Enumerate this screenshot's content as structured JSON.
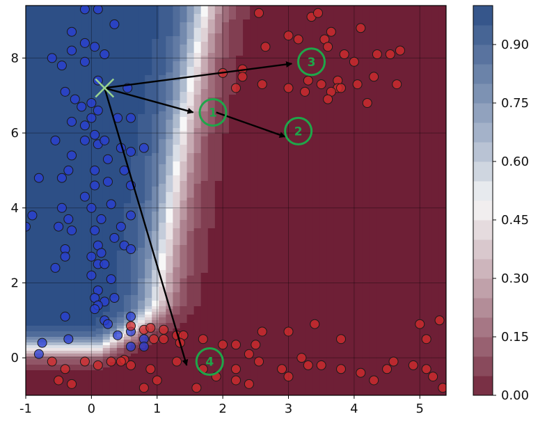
{
  "chart_data": {
    "type": "scatter",
    "title": "",
    "xlabel": "",
    "ylabel": "",
    "xlim": [
      -1.0,
      5.4
    ],
    "ylim": [
      -1.0,
      9.4
    ],
    "x_ticks": [
      "-1",
      "0",
      "1",
      "2",
      "3",
      "4",
      "5"
    ],
    "x_tick_values": [
      -1,
      0,
      1,
      2,
      3,
      4,
      5
    ],
    "y_ticks": [
      "0",
      "2",
      "4",
      "6",
      "8"
    ],
    "y_tick_values": [
      0,
      2,
      4,
      6,
      8
    ],
    "grid": true,
    "colorbar": {
      "range": [
        0.0,
        1.0
      ],
      "ticks": [
        "0.00",
        "0.15",
        "0.30",
        "0.45",
        "0.60",
        "0.75",
        "0.90"
      ],
      "tick_values": [
        0.0,
        0.15,
        0.3,
        0.45,
        0.6,
        0.75,
        0.9
      ],
      "low_color": "#6e1f36",
      "mid_color": "#f7f7f7",
      "high_color": "#2d4f86"
    },
    "background": "decision boundary probability map (blue = high class-1 probability on the left, red = low on the right)",
    "series": [
      {
        "color": "#2a3fd6",
        "points": [
          [
            -0.1,
            9.3
          ],
          [
            0.1,
            9.3
          ],
          [
            0.35,
            8.9
          ],
          [
            -0.3,
            8.7
          ],
          [
            -0.1,
            8.4
          ],
          [
            0.05,
            8.3
          ],
          [
            -0.3,
            8.2
          ],
          [
            0.2,
            8.1
          ],
          [
            -0.6,
            8.0
          ],
          [
            -0.1,
            7.9
          ],
          [
            -0.45,
            7.8
          ],
          [
            0.1,
            7.4
          ],
          [
            -0.4,
            7.1
          ],
          [
            0.55,
            7.2
          ],
          [
            -0.25,
            6.9
          ],
          [
            0.0,
            6.8
          ],
          [
            -0.15,
            6.7
          ],
          [
            0.1,
            6.6
          ],
          [
            0.0,
            6.4
          ],
          [
            -0.1,
            6.2
          ],
          [
            0.4,
            6.4
          ],
          [
            0.6,
            6.4
          ],
          [
            -0.3,
            6.3
          ],
          [
            0.05,
            5.95
          ],
          [
            0.8,
            5.6
          ],
          [
            -0.55,
            5.8
          ],
          [
            -0.1,
            5.8
          ],
          [
            0.1,
            5.7
          ],
          [
            0.2,
            5.8
          ],
          [
            0.45,
            5.6
          ],
          [
            0.6,
            5.5
          ],
          [
            -0.3,
            5.4
          ],
          [
            0.25,
            5.3
          ],
          [
            0.05,
            5.0
          ],
          [
            -0.35,
            5.0
          ],
          [
            0.5,
            5.0
          ],
          [
            -0.45,
            4.8
          ],
          [
            0.25,
            4.7
          ],
          [
            0.05,
            4.6
          ],
          [
            0.6,
            4.6
          ],
          [
            -0.8,
            4.8
          ],
          [
            -0.1,
            4.3
          ],
          [
            0.3,
            4.1
          ],
          [
            -0.45,
            4.0
          ],
          [
            0.0,
            4.0
          ],
          [
            0.6,
            3.8
          ],
          [
            -0.35,
            3.7
          ],
          [
            0.15,
            3.7
          ],
          [
            0.45,
            3.5
          ],
          [
            -0.5,
            3.5
          ],
          [
            -0.3,
            3.4
          ],
          [
            0.05,
            3.4
          ],
          [
            0.35,
            3.2
          ],
          [
            -0.9,
            3.8
          ],
          [
            -1.0,
            3.5
          ],
          [
            0.1,
            3.0
          ],
          [
            0.15,
            2.8
          ],
          [
            0.0,
            2.7
          ],
          [
            0.5,
            3.0
          ],
          [
            -0.4,
            2.9
          ],
          [
            0.6,
            2.9
          ],
          [
            -0.4,
            2.7
          ],
          [
            0.1,
            2.5
          ],
          [
            0.2,
            2.5
          ],
          [
            0.0,
            2.2
          ],
          [
            -0.55,
            2.4
          ],
          [
            0.3,
            2.1
          ],
          [
            0.1,
            1.8
          ],
          [
            0.05,
            1.6
          ],
          [
            0.2,
            1.5
          ],
          [
            0.35,
            1.6
          ],
          [
            0.1,
            1.4
          ],
          [
            0.2,
            1.0
          ],
          [
            0.05,
            1.3
          ],
          [
            -0.4,
            1.1
          ],
          [
            0.6,
            1.1
          ],
          [
            0.25,
            0.9
          ],
          [
            0.6,
            0.7
          ],
          [
            0.4,
            0.6
          ],
          [
            -0.75,
            0.4
          ],
          [
            -0.35,
            0.5
          ],
          [
            0.6,
            0.3
          ],
          [
            0.8,
            0.5
          ],
          [
            -0.8,
            0.1
          ],
          [
            0.8,
            0.3
          ]
        ]
      },
      {
        "color": "#d62e2e",
        "points": [
          [
            2.55,
            9.2
          ],
          [
            3.35,
            9.1
          ],
          [
            3.45,
            9.2
          ],
          [
            3.15,
            8.5
          ],
          [
            3.0,
            8.6
          ],
          [
            3.65,
            8.7
          ],
          [
            3.55,
            8.5
          ],
          [
            4.1,
            8.8
          ],
          [
            2.65,
            8.3
          ],
          [
            3.6,
            8.3
          ],
          [
            3.85,
            8.1
          ],
          [
            4.35,
            8.1
          ],
          [
            4.55,
            8.1
          ],
          [
            4.7,
            8.2
          ],
          [
            4.65,
            7.3
          ],
          [
            4.0,
            7.9
          ],
          [
            4.3,
            7.5
          ],
          [
            2.0,
            7.6
          ],
          [
            2.3,
            7.7
          ],
          [
            2.3,
            7.5
          ],
          [
            2.6,
            7.3
          ],
          [
            2.2,
            7.2
          ],
          [
            3.0,
            7.2
          ],
          [
            3.25,
            7.1
          ],
          [
            3.5,
            7.3
          ],
          [
            3.75,
            7.4
          ],
          [
            3.75,
            7.2
          ],
          [
            3.65,
            7.1
          ],
          [
            3.6,
            6.9
          ],
          [
            3.8,
            7.2
          ],
          [
            4.05,
            7.3
          ],
          [
            4.2,
            6.8
          ],
          [
            3.3,
            7.4
          ],
          [
            0.6,
            0.85
          ],
          [
            0.8,
            0.75
          ],
          [
            0.9,
            0.8
          ],
          [
            1.1,
            0.75
          ],
          [
            0.95,
            0.5
          ],
          [
            1.1,
            0.5
          ],
          [
            1.3,
            0.6
          ],
          [
            1.4,
            0.6
          ],
          [
            1.35,
            0.4
          ],
          [
            1.7,
            0.5
          ],
          [
            2.0,
            0.35
          ],
          [
            2.2,
            0.35
          ],
          [
            2.5,
            0.35
          ],
          [
            2.4,
            0.1
          ],
          [
            2.6,
            0.7
          ],
          [
            3.0,
            0.7
          ],
          [
            3.4,
            0.9
          ],
          [
            3.8,
            0.5
          ],
          [
            5.0,
            0.9
          ],
          [
            5.3,
            1.0
          ],
          [
            5.1,
            0.5
          ],
          [
            -0.6,
            -0.1
          ],
          [
            -0.4,
            -0.3
          ],
          [
            -0.3,
            -0.7
          ],
          [
            -0.5,
            -0.6
          ],
          [
            -0.1,
            -0.1
          ],
          [
            0.1,
            -0.2
          ],
          [
            0.3,
            -0.1
          ],
          [
            0.5,
            -0.05
          ],
          [
            0.45,
            -0.1
          ],
          [
            0.6,
            -0.2
          ],
          [
            0.9,
            -0.3
          ],
          [
            1.0,
            -0.6
          ],
          [
            1.3,
            -0.1
          ],
          [
            1.7,
            -0.3
          ],
          [
            1.9,
            -0.5
          ],
          [
            2.2,
            -0.6
          ],
          [
            2.4,
            -0.7
          ],
          [
            2.2,
            -0.3
          ],
          [
            2.55,
            -0.1
          ],
          [
            2.9,
            -0.3
          ],
          [
            3.0,
            -0.5
          ],
          [
            3.2,
            0.0
          ],
          [
            3.3,
            -0.2
          ],
          [
            3.5,
            -0.2
          ],
          [
            3.8,
            -0.3
          ],
          [
            4.1,
            -0.4
          ],
          [
            4.3,
            -0.6
          ],
          [
            4.5,
            -0.3
          ],
          [
            4.6,
            -0.1
          ],
          [
            4.9,
            -0.2
          ],
          [
            5.1,
            -0.3
          ],
          [
            5.2,
            -0.5
          ],
          [
            5.35,
            -0.8
          ],
          [
            0.8,
            -0.8
          ],
          [
            1.6,
            -0.8
          ]
        ]
      }
    ],
    "marker": {
      "name": "x",
      "x": 0.2,
      "y": 7.2,
      "color": "#9bd48f"
    },
    "arrows": [
      {
        "from": [
          0.2,
          7.2
        ],
        "to": [
          1.55,
          6.55
        ]
      },
      {
        "from": [
          1.9,
          6.55
        ],
        "to": [
          2.95,
          5.9
        ]
      },
      {
        "from": [
          0.2,
          7.2
        ],
        "to": [
          3.05,
          7.85
        ]
      },
      {
        "from": [
          0.2,
          7.2
        ],
        "to": [
          1.45,
          -0.2
        ]
      }
    ],
    "annotations": [
      {
        "label": "1",
        "x": 1.85,
        "y": 6.55,
        "color": "#1fa64a"
      },
      {
        "label": "2",
        "x": 3.15,
        "y": 6.05,
        "color": "#1fa64a"
      },
      {
        "label": "3",
        "x": 3.35,
        "y": 7.9,
        "color": "#1fa64a"
      },
      {
        "label": "4",
        "x": 1.8,
        "y": -0.1,
        "color": "#1fa64a"
      }
    ]
  }
}
